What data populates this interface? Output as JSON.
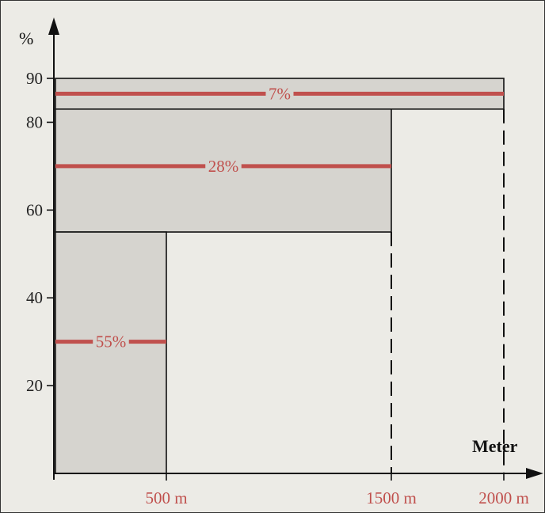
{
  "chart_data": {
    "type": "bar",
    "y_unit_label": "%",
    "x_unit_label": "Meter",
    "y_ticks": [
      20,
      40,
      60,
      80,
      90
    ],
    "x_ticks": [
      {
        "value": 500,
        "label": "500 m"
      },
      {
        "value": 1500,
        "label": "1500 m"
      },
      {
        "value": 2000,
        "label": "2000 m"
      }
    ],
    "ylim": [
      0,
      93
    ],
    "xlim": [
      0,
      2150
    ],
    "bands": [
      {
        "label": "55%",
        "x_start": 0,
        "x_end": 500,
        "y_low": 0,
        "y_high": 55,
        "value_y": 30
      },
      {
        "label": "28%",
        "x_start": 0,
        "x_end": 1500,
        "y_low": 55,
        "y_high": 83,
        "value_y": 70
      },
      {
        "label": "7%",
        "x_start": 0,
        "x_end": 2000,
        "y_low": 83,
        "y_high": 90,
        "value_y": 86.5
      }
    ],
    "colors": {
      "band_fill": "#d6d4cf",
      "value_line": "#c0504d",
      "axis": "#111111"
    }
  }
}
